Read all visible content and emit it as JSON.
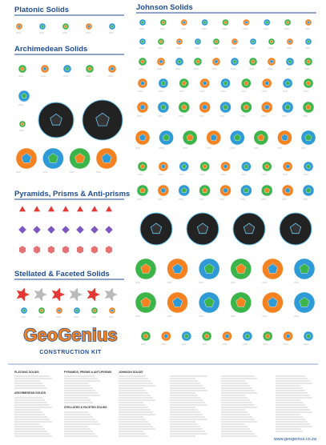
{
  "sections": [
    "Platonic Solids",
    "Johnson Solids",
    "Archimedean Solids",
    "Pyramids, Prisms & Anti-prisms",
    "Stellated & Faceted Solids"
  ],
  "index_headings": [
    "PLATONIC SOLIDS",
    "ARCHIMEDEAN SOLIDS",
    "PYRAMIDS, PRISMS & ANTI-PRISMS",
    "STELLATED & FACETED SOLIDS",
    "JOHNSON SOLIDS"
  ],
  "logo": {
    "name": "GeoGenius",
    "subtitle": "CONSTRUCTION KIT"
  },
  "website": "www.geogenius.co.za"
}
